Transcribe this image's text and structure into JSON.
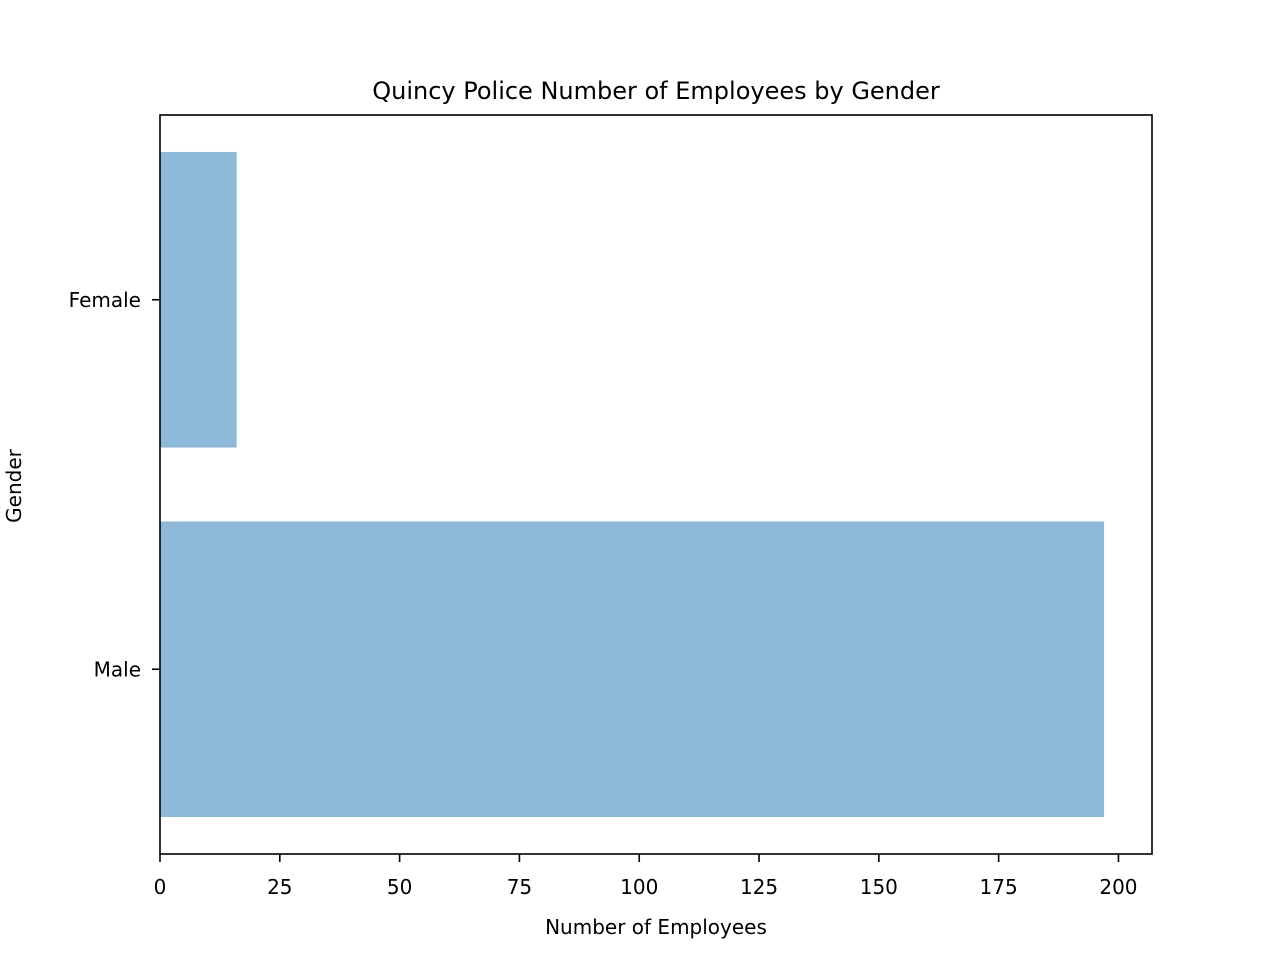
{
  "chart_data": {
    "type": "bar",
    "orientation": "horizontal",
    "title": "Quincy Police Number of Employees by Gender",
    "xlabel": "Number of Employees",
    "ylabel": "Gender",
    "categories": [
      "Female",
      "Male"
    ],
    "values": [
      16,
      197
    ],
    "xlim": [
      0,
      207
    ],
    "xticks": [
      0,
      25,
      50,
      75,
      100,
      125,
      150,
      175,
      200
    ],
    "bar_color": "#8fb9d8",
    "grid": false,
    "legend": "none"
  }
}
